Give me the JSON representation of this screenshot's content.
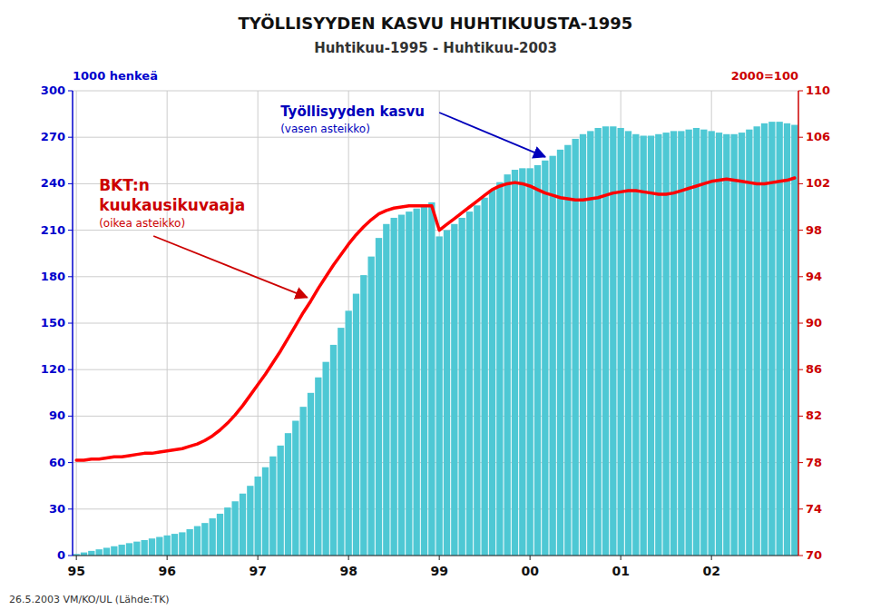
{
  "chart_data": {
    "type": "bar",
    "title": "TYÖLLISYYDEN  KASVU  HUHTIKUUSTA-1995",
    "subtitle": "Huhtikuu-1995  -  Huhtikuu-2003",
    "ylabel": "1000 henkeä",
    "y2label": "2000=100",
    "footer": "26.5.2003  VM/KO/UL  (Lähde:TK)",
    "categories": [
      "95",
      null,
      null,
      null,
      null,
      null,
      null,
      null,
      null,
      null,
      null,
      null,
      "96",
      null,
      null,
      null,
      null,
      null,
      null,
      null,
      null,
      null,
      null,
      null,
      "97",
      null,
      null,
      null,
      null,
      null,
      null,
      null,
      null,
      null,
      null,
      null,
      "98",
      null,
      null,
      null,
      null,
      null,
      null,
      null,
      null,
      null,
      null,
      null,
      "99",
      null,
      null,
      null,
      null,
      null,
      null,
      null,
      null,
      null,
      null,
      null,
      "00",
      null,
      null,
      null,
      null,
      null,
      null,
      null,
      null,
      null,
      null,
      null,
      "01",
      null,
      null,
      null,
      null,
      null,
      null,
      null,
      null,
      null,
      null,
      null,
      "02",
      null,
      null,
      null,
      null,
      null,
      null,
      null,
      null,
      null,
      null,
      null
    ],
    "series": [
      {
        "type": "bar",
        "color": "#4EC8D4",
        "values": [
          1,
          2,
          3,
          4,
          5,
          6,
          7,
          8,
          9,
          10,
          11,
          12,
          13,
          14,
          15,
          17,
          19,
          21,
          24,
          27,
          31,
          35,
          40,
          45,
          51,
          57,
          64,
          71,
          79,
          87,
          96,
          105,
          115,
          125,
          136,
          147,
          158,
          169,
          181,
          193,
          205,
          214,
          218,
          220,
          222,
          224,
          226,
          228,
          206,
          210,
          214,
          218,
          222,
          226,
          231,
          236,
          241,
          246,
          249,
          250,
          250,
          252,
          255,
          258,
          262,
          265,
          269,
          272,
          274,
          276,
          277,
          277,
          276,
          274,
          272,
          271,
          271,
          272,
          273,
          274,
          274,
          275,
          276,
          275,
          274,
          273,
          272,
          272,
          273,
          275,
          277,
          279,
          280,
          280,
          279,
          278
        ]
      },
      {
        "type": "line",
        "axis": "y2",
        "color": "#FF0000",
        "values": [
          78.2,
          78.2,
          78.3,
          78.3,
          78.4,
          78.5,
          78.5,
          78.6,
          78.7,
          78.8,
          78.8,
          78.9,
          79.0,
          79.1,
          79.2,
          79.4,
          79.6,
          79.9,
          80.3,
          80.8,
          81.4,
          82.1,
          82.9,
          83.8,
          84.7,
          85.6,
          86.6,
          87.6,
          88.7,
          89.8,
          90.9,
          91.9,
          93.0,
          94.0,
          95.0,
          95.9,
          96.8,
          97.6,
          98.3,
          98.9,
          99.4,
          99.7,
          99.9,
          100.0,
          100.1,
          100.1,
          100.1,
          100.1,
          98.0,
          98.5,
          99.0,
          99.5,
          100.0,
          100.5,
          101.0,
          101.5,
          101.8,
          102.0,
          102.1,
          102.0,
          101.8,
          101.5,
          101.2,
          101.0,
          100.8,
          100.7,
          100.6,
          100.6,
          100.7,
          100.8,
          101.0,
          101.2,
          101.3,
          101.4,
          101.4,
          101.3,
          101.2,
          101.1,
          101.1,
          101.2,
          101.4,
          101.6,
          101.8,
          102.0,
          102.2,
          102.3,
          102.4,
          102.3,
          102.2,
          102.1,
          102.0,
          102.0,
          102.1,
          102.2,
          102.3,
          102.5
        ]
      }
    ],
    "ylim": [
      0,
      300
    ],
    "yticks": [
      0,
      30,
      60,
      90,
      120,
      150,
      180,
      210,
      240,
      270,
      300
    ],
    "y2lim": [
      70,
      110
    ],
    "y2ticks": [
      70,
      74,
      78,
      82,
      86,
      90,
      94,
      98,
      102,
      106,
      110
    ],
    "grid": true,
    "annotations": [
      {
        "text": "Työllisyyden kasvu",
        "color": "#0000BB"
      },
      {
        "text": "(vasen asteikko)",
        "color": "#0000BB"
      },
      {
        "text": "BKT:n",
        "color": "#CC0000"
      },
      {
        "text": "kuukausikuvaaja",
        "color": "#CC0000"
      },
      {
        "text": "(oikea asteikko)",
        "color": "#CC0000"
      }
    ]
  }
}
